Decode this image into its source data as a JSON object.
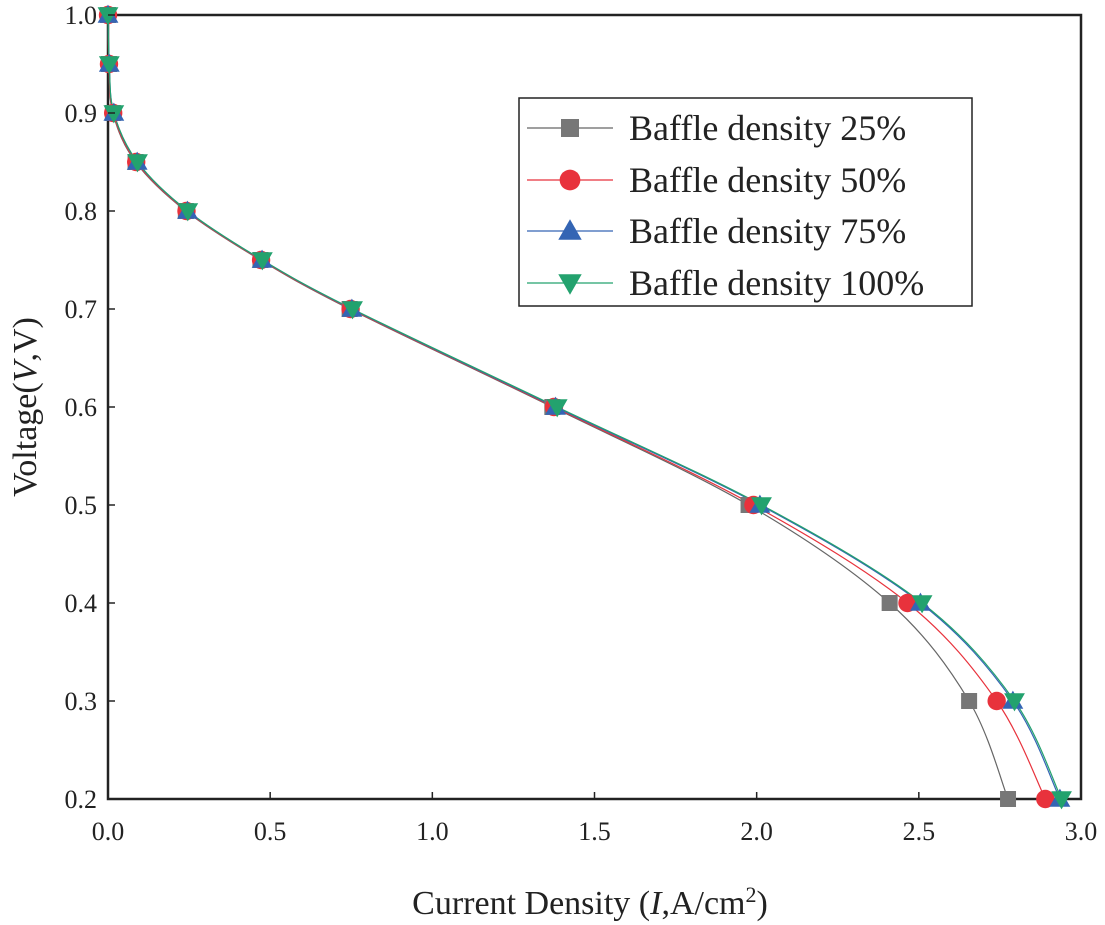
{
  "chart_data": {
    "type": "line",
    "title": "",
    "xlabel": {
      "prefix": "Current Density (",
      "var": "I",
      "unit": ",A/cm",
      "sup": "2",
      "suffix": ")"
    },
    "ylabel": {
      "prefix": "Voltage(",
      "var": "V",
      "suffix": ",V)"
    },
    "xlim": [
      0,
      3.0
    ],
    "ylim": [
      0.2,
      1.0
    ],
    "xticks": [
      0.0,
      0.5,
      1.0,
      1.5,
      2.0,
      2.5,
      3.0
    ],
    "yticks": [
      0.2,
      0.3,
      0.4,
      0.5,
      0.6,
      0.7,
      0.8,
      0.9,
      1.0
    ],
    "xtick_labels": [
      "0.0",
      "0.5",
      "1.0",
      "1.5",
      "2.0",
      "2.5",
      "3.0"
    ],
    "ytick_labels": [
      "0.2",
      "0.3",
      "0.4",
      "0.5",
      "0.6",
      "0.7",
      "0.8",
      "0.9",
      "1.0"
    ],
    "grid": false,
    "legend_position": "top-right",
    "series": [
      {
        "name": "Baffle density 25%",
        "marker": "square",
        "color": "#777777",
        "line_color": "#666666",
        "x": [
          0.0,
          0.003,
          0.015,
          0.085,
          0.24,
          0.47,
          0.745,
          1.37,
          1.975,
          2.41,
          2.655,
          2.775
        ],
        "y": [
          1.0,
          0.95,
          0.9,
          0.85,
          0.8,
          0.75,
          0.7,
          0.6,
          0.5,
          0.4,
          0.3,
          0.2
        ]
      },
      {
        "name": "Baffle density 50%",
        "marker": "circle",
        "color": "#e8323c",
        "line_color": "#e8323c",
        "x": [
          0.0,
          0.003,
          0.016,
          0.087,
          0.242,
          0.472,
          0.748,
          1.375,
          1.99,
          2.465,
          2.74,
          2.89
        ],
        "y": [
          1.0,
          0.95,
          0.9,
          0.85,
          0.8,
          0.75,
          0.7,
          0.6,
          0.5,
          0.4,
          0.3,
          0.2
        ]
      },
      {
        "name": "Baffle density 75%",
        "marker": "triangle-up",
        "color": "#3465b4",
        "line_color": "#3465b4",
        "x": [
          0.0,
          0.004,
          0.018,
          0.09,
          0.245,
          0.475,
          0.752,
          1.38,
          2.01,
          2.505,
          2.79,
          2.935
        ],
        "y": [
          1.0,
          0.95,
          0.9,
          0.85,
          0.8,
          0.75,
          0.7,
          0.6,
          0.5,
          0.4,
          0.3,
          0.2
        ]
      },
      {
        "name": "Baffle density 100%",
        "marker": "triangle-down",
        "color": "#23a26e",
        "line_color": "#23a26e",
        "x": [
          0.0,
          0.004,
          0.018,
          0.091,
          0.246,
          0.476,
          0.754,
          1.385,
          2.015,
          2.51,
          2.795,
          2.94
        ],
        "y": [
          1.0,
          0.95,
          0.9,
          0.85,
          0.8,
          0.75,
          0.7,
          0.6,
          0.5,
          0.4,
          0.3,
          0.2
        ]
      }
    ]
  }
}
